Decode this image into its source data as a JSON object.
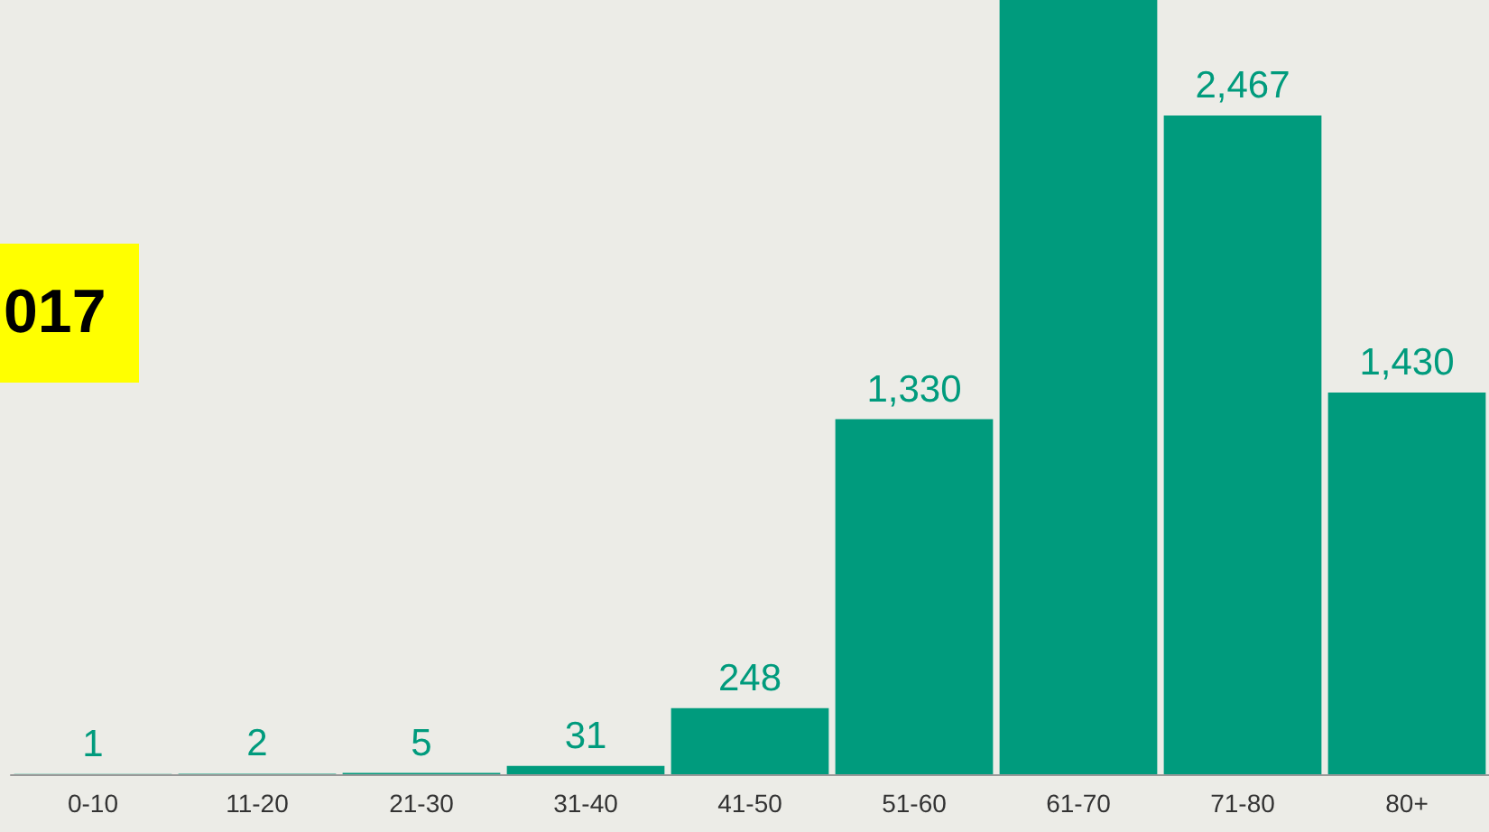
{
  "chart_data": {
    "type": "bar",
    "categories": [
      "0-10",
      "11-20",
      "21-30",
      "31-40",
      "41-50",
      "51-60",
      "61-70",
      "71-80",
      "80+"
    ],
    "values": [
      1,
      2,
      5,
      31,
      248,
      1330,
      2900,
      2467,
      1430
    ],
    "value_labels": [
      "1",
      "2",
      "5",
      "31",
      "248",
      "1,330",
      null,
      "2,467",
      "1,430"
    ],
    "color": "#009b7d",
    "ylim": [
      0,
      2900
    ],
    "tick_labels": "x",
    "grid": false,
    "annotations": [
      "017"
    ]
  }
}
